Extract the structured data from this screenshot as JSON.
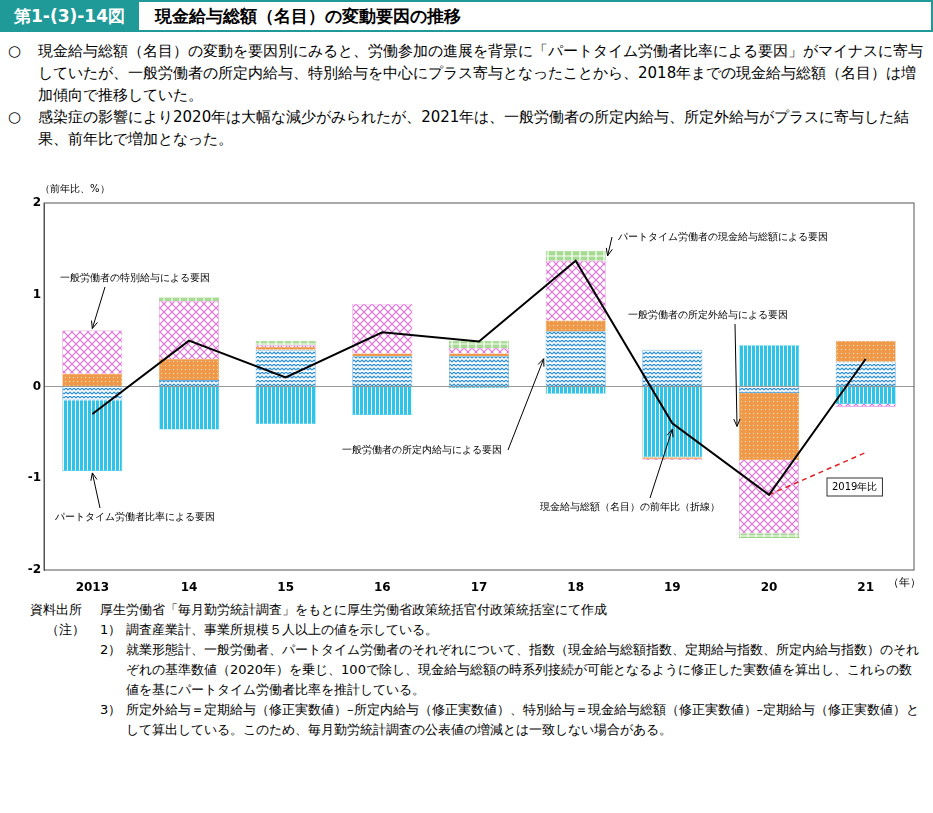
{
  "header": {
    "figure_number": "第1-(3)-14図",
    "title": "現金給与総額（名目）の変動要因の推移"
  },
  "summary": [
    {
      "bullet": "○",
      "text": "現金給与総額（名目）の変動を要因別にみると、労働参加の進展を背景に「パートタイム労働者比率による要因」がマイナスに寄与していたが、一般労働者の所定内給与、特別給与を中心にプラス寄与となったことから、2018年までの現金給与総額（名目）は増加傾向で推移していた。"
    },
    {
      "bullet": "○",
      "text": "感染症の影響により2020年は大幅な減少がみられたが、2021年は、一般労働者の所定内給与、所定外給与がプラスに寄与した結果、前年比で増加となった。"
    }
  ],
  "chart_data": {
    "type": "bar",
    "y_label": "（前年比、%）",
    "x_label": "（年）",
    "categories": [
      "2013",
      "14",
      "15",
      "16",
      "17",
      "18",
      "19",
      "20",
      "21"
    ],
    "ylim": [
      -2,
      2
    ],
    "yticks": [
      -2,
      -1,
      0,
      1,
      2
    ],
    "grid": false,
    "stacked": true,
    "legend": "none",
    "series": [
      {
        "name": "一般労働者の所定内給与による要因",
        "type": "bar",
        "color": "#2a8fd8",
        "values": [
          -0.15,
          0.07,
          0.4,
          0.33,
          0.33,
          0.6,
          0.4,
          -0.07,
          0.27
        ]
      },
      {
        "name": "パートタイム労働者比率による要因",
        "type": "bar",
        "color": "#2ec4e8",
        "values": [
          -0.77,
          -0.47,
          -0.41,
          -0.31,
          -0.02,
          -0.08,
          -0.77,
          0.45,
          -0.19
        ]
      },
      {
        "name": "一般労働者の所定外給与による要因",
        "type": "bar",
        "color": "#ee9a4a",
        "values": [
          0.14,
          0.23,
          0.03,
          0.03,
          0.03,
          0.12,
          -0.02,
          -0.73,
          0.23
        ]
      },
      {
        "name": "一般労働者の特別給与による要因",
        "type": "bar",
        "color": "#e070d8",
        "values": [
          0.47,
          0.63,
          0.02,
          0.54,
          0.06,
          0.65,
          -0.01,
          -0.8,
          -0.03
        ]
      },
      {
        "name": "パートタイム労働者の現金給与総額による要因",
        "type": "bar",
        "color": "#6cc24a",
        "values": [
          0,
          0.04,
          0.05,
          0,
          0.08,
          0.11,
          0,
          -0.05,
          0
        ]
      },
      {
        "name": "現金給与総額（名目）の前年比（折線）",
        "type": "line",
        "color": "#000000",
        "marker": "none",
        "line_style": "solid",
        "values": [
          -0.3,
          0.5,
          0.1,
          0.59,
          0.49,
          1.37,
          -0.4,
          -1.18,
          0.3
        ]
      },
      {
        "name": "2019年比",
        "type": "line",
        "color": "#e02020",
        "marker": "none",
        "line_style": "dashed",
        "values": [
          null,
          null,
          null,
          null,
          null,
          null,
          null,
          -1.18,
          -0.72
        ]
      }
    ]
  },
  "source_label": "資料出所",
  "source": "厚生労働省「毎月勤労統計調査」をもとに厚生労働省政策統括官付政策統括室にて作成",
  "notes_label": "（注）",
  "notes": [
    {
      "no": "1）",
      "text": "調査産業計、事業所規模５人以上の値を示している。"
    },
    {
      "no": "2）",
      "text": "就業形態計、一般労働者、パートタイム労働者のそれぞれについて、指数（現金給与総額指数、定期給与指数、所定内給与指数）のそれぞれの基準数値（2020年）を乗じ、100で除し、現金給与総額の時系列接続が可能となるように修正した実数値を算出し、これらの数値を基にパートタイム労働者比率を推計している。"
    },
    {
      "no": "3）",
      "text": "所定外給与＝定期給与（修正実数値）–所定内給与（修正実数値）、特別給与＝現金給与総額（修正実数値）–定期給与（修正実数値）として算出している。このため、毎月勤労統計調査の公表値の増減とは一致しない場合がある。"
    }
  ]
}
